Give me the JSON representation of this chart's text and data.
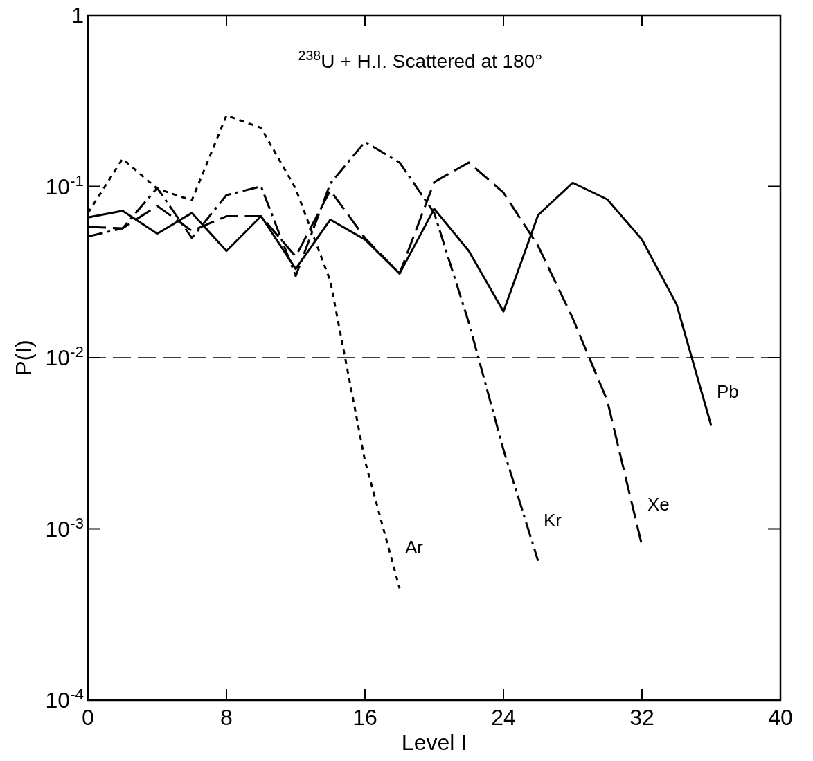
{
  "chart_data": {
    "type": "line",
    "title": "$^{238}$U + H.I. Scattered at 180°",
    "xlabel": "Level I",
    "ylabel": "P(I)",
    "log": "y",
    "legend": false,
    "grid": false,
    "xlim": [
      0,
      40
    ],
    "xticks": [
      0,
      8,
      16,
      24,
      32,
      40
    ],
    "ylim": [
      0.0001,
      1
    ],
    "yticks": [
      {
        "value": 0.0001,
        "label": "10$^{-4}$"
      },
      {
        "value": 0.001,
        "label": "10$^{-3}$"
      },
      {
        "value": 0.01,
        "label": "10$^{-2}$"
      },
      {
        "value": 0.1,
        "label": "10$^{-1}$"
      },
      1
    ],
    "ref_lines": [
      {
        "axis": "y",
        "value": 0.01,
        "line_style": "dashed",
        "color": "#000000"
      }
    ],
    "series": [
      {
        "name": "Ar",
        "color": "#000000",
        "line_style": "dotted",
        "x": [
          0,
          2,
          4,
          6,
          8,
          10,
          12,
          14,
          16,
          18
        ],
        "values": [
          0.07,
          0.145,
          0.097,
          0.083,
          0.26,
          0.22,
          0.097,
          0.028,
          0.0025,
          0.00045
        ]
      },
      {
        "name": "Kr",
        "color": "#000000",
        "line_style": "dashdot",
        "x": [
          0,
          2,
          4,
          6,
          8,
          10,
          12,
          14,
          16,
          18,
          20,
          22,
          24,
          26
        ],
        "values": [
          0.051,
          0.057,
          0.098,
          0.05,
          0.089,
          0.1,
          0.03,
          0.104,
          0.182,
          0.138,
          0.07,
          0.016,
          0.0029,
          0.00065
        ]
      },
      {
        "name": "Xe",
        "color": "#000000",
        "line_style": "dashed",
        "x": [
          0,
          2,
          4,
          6,
          8,
          10,
          12,
          14,
          16,
          18,
          20,
          22,
          24,
          26,
          28,
          30,
          32
        ],
        "values": [
          0.058,
          0.057,
          0.077,
          0.055,
          0.067,
          0.067,
          0.039,
          0.095,
          0.05,
          0.031,
          0.106,
          0.138,
          0.092,
          0.045,
          0.017,
          0.0056,
          0.0008
        ]
      },
      {
        "name": "Pb",
        "color": "#000000",
        "line_style": "solid",
        "x": [
          0,
          2,
          4,
          6,
          8,
          10,
          12,
          14,
          16,
          18,
          20,
          22,
          24,
          26,
          28,
          30,
          32,
          34,
          36
        ],
        "values": [
          0.066,
          0.072,
          0.053,
          0.07,
          0.042,
          0.067,
          0.033,
          0.064,
          0.049,
          0.031,
          0.074,
          0.042,
          0.0186,
          0.068,
          0.105,
          0.084,
          0.049,
          0.0205,
          0.004
        ]
      }
    ]
  }
}
